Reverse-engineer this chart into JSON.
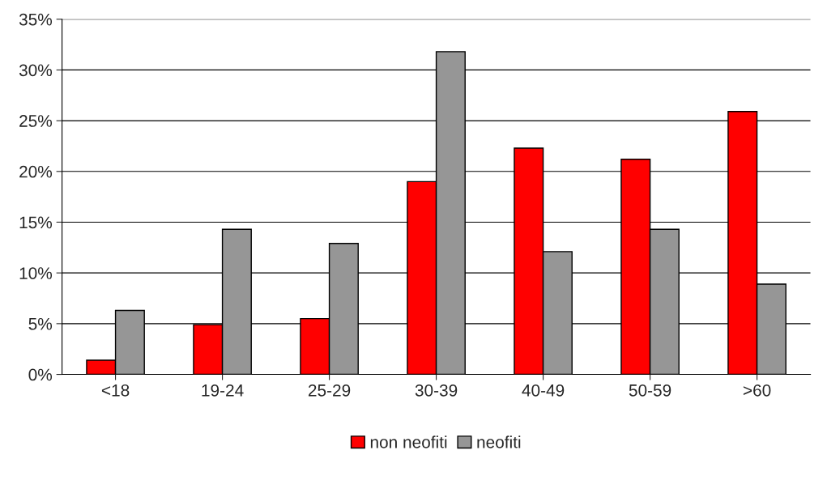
{
  "chart_data": {
    "type": "bar",
    "categories": [
      "<18",
      "19-24",
      "25-29",
      "30-39",
      "40-49",
      "50-59",
      ">60"
    ],
    "series": [
      {
        "name": "non neofiti",
        "color": "#ff0000",
        "values": [
          1.4,
          4.9,
          5.5,
          19,
          22.3,
          21.2,
          25.9
        ]
      },
      {
        "name": "neofiti",
        "color": "#969696",
        "values": [
          6.3,
          14.3,
          12.9,
          31.8,
          12.1,
          14.3,
          8.9
        ]
      }
    ],
    "ylim": [
      0,
      35
    ],
    "yticks": [
      {
        "value": 0,
        "label": "0%"
      },
      {
        "value": 5,
        "label": "5%"
      },
      {
        "value": 10,
        "label": "10%"
      },
      {
        "value": 15,
        "label": "15%"
      },
      {
        "value": 20,
        "label": "20%"
      },
      {
        "value": 25,
        "label": "25%"
      },
      {
        "value": 30,
        "label": "30%"
      },
      {
        "value": 35,
        "label": "35%"
      }
    ],
    "grid": "y",
    "legend": "bottom"
  }
}
